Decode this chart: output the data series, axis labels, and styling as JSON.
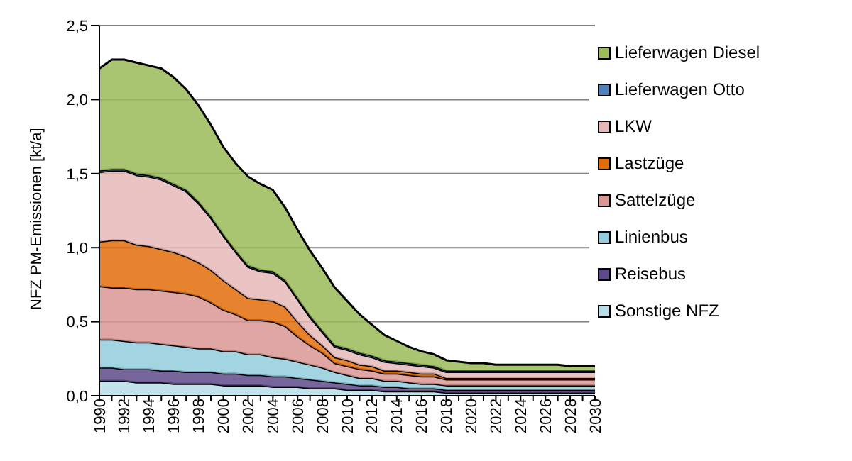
{
  "chart_data": {
    "type": "area",
    "stacked": true,
    "ylabel": "NFZ PM-Emissionen  [kt/a]",
    "categories": [
      "1990",
      null,
      "1992",
      null,
      "1994",
      null,
      "1996",
      null,
      "1998",
      null,
      "2000",
      null,
      "2002",
      null,
      "2004",
      null,
      "2006",
      null,
      "2008",
      null,
      "2010",
      null,
      "2012",
      null,
      "2014",
      null,
      "2016",
      null,
      "2018",
      null,
      "2020",
      null,
      "2022",
      null,
      "2024",
      null,
      "2026",
      null,
      "2028",
      null,
      "2030"
    ],
    "ylim": [
      0,
      2.5
    ],
    "yticks": [
      {
        "value": 0,
        "label": "0,0"
      },
      {
        "value": 0.5,
        "label": "0,5"
      },
      {
        "value": 1,
        "label": "1,0"
      },
      {
        "value": 1.5,
        "label": "1,5"
      },
      {
        "value": 2,
        "label": "2,0"
      },
      {
        "value": 2.5,
        "label": "2,5"
      }
    ],
    "grid": "y",
    "legend": "right",
    "series": [
      {
        "name": "Sonstige NFZ",
        "color": "#b7dee8",
        "values": [
          0.1,
          0.1,
          0.1,
          0.09,
          0.09,
          0.09,
          0.08,
          0.08,
          0.08,
          0.08,
          0.07,
          0.07,
          0.07,
          0.07,
          0.06,
          0.06,
          0.06,
          0.05,
          0.05,
          0.05,
          0.04,
          0.04,
          0.04,
          0.03,
          0.03,
          0.03,
          0.03,
          0.03,
          0.02,
          0.02,
          0.02,
          0.02,
          0.02,
          0.02,
          0.02,
          0.02,
          0.02,
          0.02,
          0.02,
          0.02,
          0.02
        ]
      },
      {
        "name": "Reisebus",
        "color": "#5f4b8b",
        "values": [
          0.09,
          0.09,
          0.08,
          0.09,
          0.09,
          0.08,
          0.09,
          0.08,
          0.08,
          0.08,
          0.08,
          0.08,
          0.07,
          0.07,
          0.07,
          0.07,
          0.06,
          0.06,
          0.05,
          0.04,
          0.04,
          0.03,
          0.03,
          0.03,
          0.03,
          0.02,
          0.02,
          0.02,
          0.02,
          0.02,
          0.02,
          0.02,
          0.02,
          0.02,
          0.02,
          0.02,
          0.02,
          0.02,
          0.02,
          0.02,
          0.02
        ]
      },
      {
        "name": "Linienbus",
        "color": "#93cddd",
        "values": [
          0.19,
          0.19,
          0.19,
          0.18,
          0.18,
          0.18,
          0.17,
          0.17,
          0.16,
          0.16,
          0.15,
          0.15,
          0.14,
          0.14,
          0.13,
          0.12,
          0.11,
          0.1,
          0.09,
          0.07,
          0.06,
          0.05,
          0.05,
          0.04,
          0.04,
          0.04,
          0.03,
          0.03,
          0.03,
          0.03,
          0.03,
          0.03,
          0.03,
          0.03,
          0.03,
          0.03,
          0.03,
          0.03,
          0.03,
          0.03,
          0.03
        ]
      },
      {
        "name": "Sattelzüge",
        "color": "#d99694",
        "values": [
          0.36,
          0.35,
          0.36,
          0.36,
          0.36,
          0.36,
          0.36,
          0.36,
          0.35,
          0.31,
          0.28,
          0.25,
          0.23,
          0.23,
          0.24,
          0.22,
          0.17,
          0.13,
          0.1,
          0.06,
          0.06,
          0.06,
          0.05,
          0.05,
          0.05,
          0.05,
          0.05,
          0.05,
          0.04,
          0.04,
          0.04,
          0.04,
          0.04,
          0.04,
          0.04,
          0.04,
          0.04,
          0.04,
          0.04,
          0.04,
          0.04
        ]
      },
      {
        "name": "Lastzüge",
        "color": "#e36c0a",
        "values": [
          0.3,
          0.32,
          0.32,
          0.3,
          0.29,
          0.28,
          0.27,
          0.25,
          0.23,
          0.22,
          0.2,
          0.17,
          0.15,
          0.14,
          0.14,
          0.13,
          0.1,
          0.07,
          0.05,
          0.04,
          0.04,
          0.03,
          0.03,
          0.02,
          0.02,
          0.02,
          0.02,
          0.02,
          0.01,
          0.01,
          0.01,
          0.01,
          0.01,
          0.01,
          0.01,
          0.01,
          0.01,
          0.01,
          0.01,
          0.01,
          0.01
        ]
      },
      {
        "name": "LKW",
        "color": "#e6b9b8",
        "values": [
          0.47,
          0.47,
          0.47,
          0.47,
          0.47,
          0.47,
          0.45,
          0.44,
          0.4,
          0.35,
          0.3,
          0.25,
          0.21,
          0.19,
          0.19,
          0.17,
          0.15,
          0.12,
          0.09,
          0.07,
          0.07,
          0.07,
          0.06,
          0.06,
          0.05,
          0.05,
          0.05,
          0.04,
          0.04,
          0.04,
          0.04,
          0.04,
          0.04,
          0.04,
          0.04,
          0.04,
          0.04,
          0.04,
          0.04,
          0.04,
          0.04
        ]
      },
      {
        "name": "Lieferwagen Otto",
        "color": "#4f81bd",
        "values": [
          0.01,
          0.01,
          0.01,
          0.01,
          0.01,
          0.01,
          0.01,
          0.01,
          0.01,
          0.01,
          0.01,
          0.01,
          0.01,
          0.01,
          0.01,
          0.01,
          0.01,
          0.01,
          0.01,
          0.01,
          0.01,
          0.01,
          0.01,
          0.01,
          0.01,
          0.01,
          0.01,
          0.01,
          0.01,
          0.01,
          0.01,
          0.01,
          0.01,
          0.01,
          0.01,
          0.01,
          0.01,
          0.01,
          0.01,
          0.01,
          0.01
        ]
      },
      {
        "name": "Lieferwagen Diesel",
        "color": "#9bbb59",
        "values": [
          0.69,
          0.74,
          0.74,
          0.75,
          0.74,
          0.74,
          0.72,
          0.68,
          0.65,
          0.62,
          0.59,
          0.59,
          0.6,
          0.58,
          0.55,
          0.49,
          0.46,
          0.44,
          0.42,
          0.39,
          0.32,
          0.26,
          0.21,
          0.17,
          0.14,
          0.11,
          0.09,
          0.08,
          0.07,
          0.06,
          0.05,
          0.05,
          0.04,
          0.04,
          0.04,
          0.04,
          0.04,
          0.04,
          0.03,
          0.03,
          0.03
        ]
      }
    ]
  }
}
